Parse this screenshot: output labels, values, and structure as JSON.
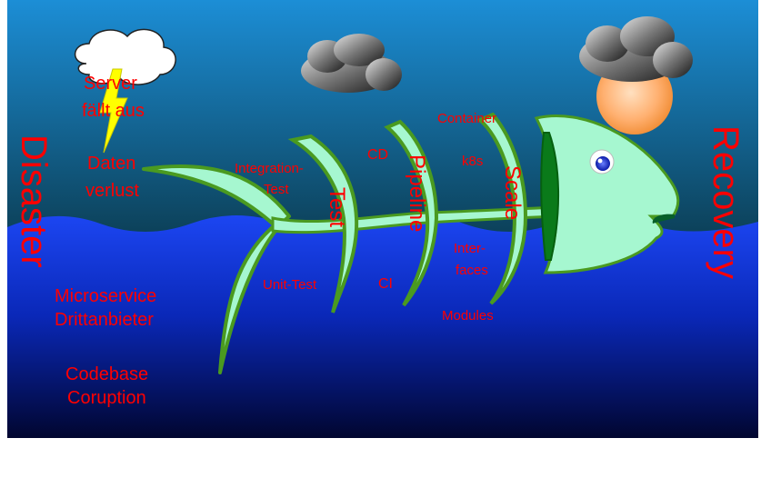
{
  "side_labels": {
    "left": "Disaster",
    "right": "Recovery"
  },
  "left_causes": {
    "server_line1": "Server",
    "server_line2": "fällt aus",
    "daten_line1": "Daten",
    "daten_line2": "verlust",
    "micro_line1": "Microservice",
    "micro_line2": "Drittanbieter",
    "code_line1": "Codebase",
    "code_line2": "Coruption"
  },
  "bones": {
    "test": "Test",
    "pipeline": "Pipeline",
    "scale": "Scale"
  },
  "bone_items": {
    "integration_line1": "Integration-",
    "integration_line2": "Test",
    "unit_test": "Unit-Test",
    "cd": "CD",
    "ci": "CI",
    "container": "Container",
    "k8s": "k8s",
    "interfaces_line1": "Inter-",
    "interfaces_line2": "faces",
    "modules": "Modules"
  },
  "colors": {
    "sky_top": "#1e90d6",
    "sea_top": "#1a44ee",
    "sea_bottom": "#01062e",
    "fish_body": "#a6f7d0",
    "fish_outline": "#4a9a20",
    "text_red": "#ff0000",
    "sun": "#ffb070",
    "lightning": "#ffff00"
  }
}
